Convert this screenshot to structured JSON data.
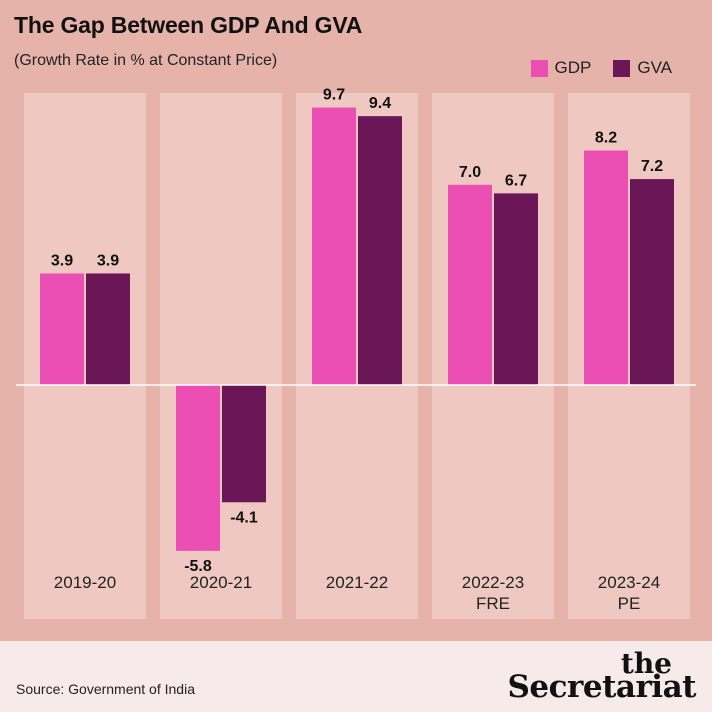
{
  "header": {
    "title": "The Gap Between GDP And GVA",
    "subtitle": "(Growth Rate in % at Constant Price)"
  },
  "legend": [
    {
      "label": "GDP",
      "color": "#ec4fb4"
    },
    {
      "label": "GVA",
      "color": "#6b1657"
    }
  ],
  "chart_data": {
    "type": "bar",
    "title": "The Gap Between GDP And GVA",
    "subtitle": "(Growth Rate in % at Constant Price)",
    "categories": [
      "2019-20",
      "2020-21",
      "2021-22",
      "2022-23\nFRE",
      "2023-24\nPE"
    ],
    "series": [
      {
        "name": "GDP",
        "color": "#ec4fb4",
        "values": [
          3.9,
          -5.8,
          9.7,
          7.0,
          8.2
        ],
        "labels": [
          "3.9",
          "-5.8",
          "9.7",
          "7.0",
          "8.2"
        ]
      },
      {
        "name": "GVA",
        "color": "#6b1657",
        "values": [
          3.9,
          -4.1,
          9.4,
          6.7,
          7.2
        ],
        "labels": [
          "3.9",
          "-4.1",
          "9.4",
          "6.7",
          "7.2"
        ]
      }
    ],
    "ylim": [
      -5.8,
      9.7
    ],
    "grid": false,
    "legend_position": "top-right"
  },
  "footer": {
    "source": "Source: Government of India",
    "brand_small": "the",
    "brand_large": "Secretariat"
  }
}
